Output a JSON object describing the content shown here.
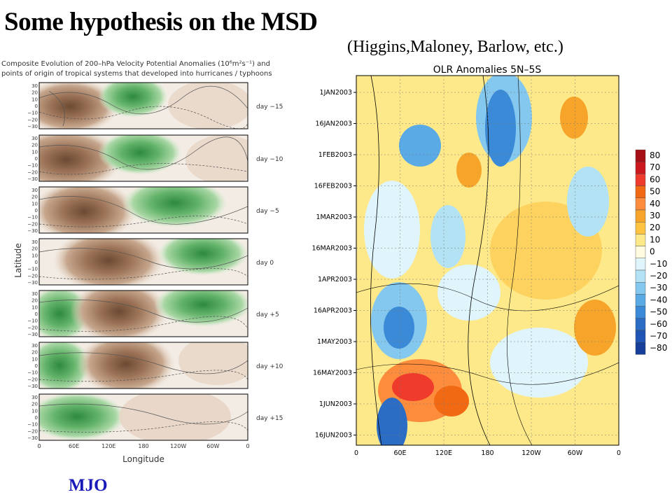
{
  "slide": {
    "title": "Some hypothesis on the MSD",
    "subtitle": "(Higgins,Maloney, Barlow, etc.)",
    "footer_label": "MJO"
  },
  "left_figure": {
    "caption_line1": "Composite Evolution of 200–hPa Velocity Potential Anomalies (10⁶m²s⁻¹) and",
    "caption_line2": "points of origin of tropical systems that developed into hurricanes / typhoons",
    "y_axis_title": "Latitude",
    "x_axis_title": "Longitude",
    "lat_ticks": [
      "30",
      "20",
      "10",
      "0",
      "−10",
      "−20",
      "−30"
    ],
    "lon_ticks": [
      "0",
      "60E",
      "120E",
      "180",
      "120W",
      "60W",
      "0"
    ],
    "panels": [
      {
        "label": "day −15"
      },
      {
        "label": "day −10"
      },
      {
        "label": "day −5"
      },
      {
        "label": "day 0"
      },
      {
        "label": "day +5"
      },
      {
        "label": "day +10"
      },
      {
        "label": "day +15"
      }
    ]
  },
  "right_figure": {
    "title": "OLR Anomalies 5N–5S",
    "date_ticks": [
      "1JAN2003",
      "16JAN2003",
      "1FEB2003",
      "16FEB2003",
      "1MAR2003",
      "16MAR2003",
      "1APR2003",
      "16APR2003",
      "1MAY2003",
      "16MAY2003",
      "1JUN2003",
      "16JUN2003"
    ],
    "lon_ticks": [
      "0",
      "60E",
      "120E",
      "180",
      "120W",
      "60W",
      "0"
    ],
    "colorbar": {
      "levels": [
        "80",
        "70",
        "60",
        "50",
        "40",
        "30",
        "20",
        "10",
        "0",
        "−10",
        "−20",
        "−30",
        "−40",
        "−50",
        "−60",
        "−70",
        "−80"
      ],
      "colors": [
        "#a50f15",
        "#cb181d",
        "#ef3b2c",
        "#f16913",
        "#fd8d3c",
        "#f7a52a",
        "#fdc341",
        "#fde98a",
        "#fffbe0",
        "#dff4fb",
        "#b3e2f5",
        "#85c8ef",
        "#5aaae6",
        "#3a8ad8",
        "#2b6cc4",
        "#1f55b4",
        "#153f99"
      ]
    }
  }
}
